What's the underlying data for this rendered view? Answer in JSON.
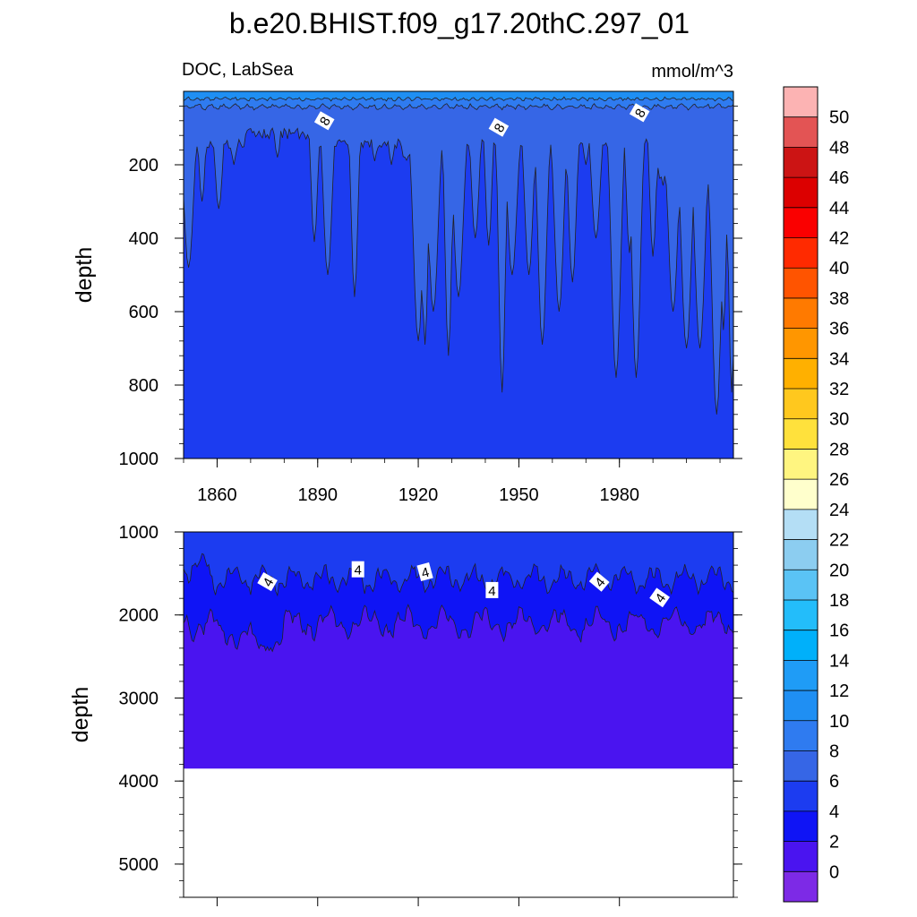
{
  "chart_data": [
    {
      "type": "heatmap",
      "title": "b.e20.BHIST.f09_g17.20thC.297_01",
      "left_subtitle": "DOC, LabSea",
      "right_subtitle": "mmol/m^3",
      "xlabel": "",
      "ylabel": "depth",
      "xlim": [
        1850,
        2014
      ],
      "ylim": [
        1000,
        0
      ],
      "x_ticks": [
        "1860",
        "1890",
        "1920",
        "1950",
        "1980"
      ],
      "y_ticks": [
        "200",
        "400",
        "600",
        "800",
        "1000"
      ],
      "contour_labels": [
        "8",
        "8",
        "8"
      ],
      "bands": [
        {
          "level": "10-12",
          "color": "#1f8ff3"
        },
        {
          "level": "8-10",
          "color": "#2f7bf0"
        },
        {
          "level": "6-8",
          "color": "#3666e6"
        },
        {
          "level": "4-6",
          "color": "#1c3cf0"
        }
      ]
    },
    {
      "type": "heatmap",
      "xlim": [
        1850,
        2014
      ],
      "ylim": [
        5400,
        1000
      ],
      "ylabel": "depth",
      "y_ticks": [
        "1000",
        "2000",
        "3000",
        "4000",
        "5000"
      ],
      "ocean_bottom": 3850,
      "contour_labels": [
        "4",
        "4",
        "4",
        "4",
        "4",
        "4"
      ],
      "bands": [
        {
          "level": "4-6",
          "color": "#1c3cf0"
        },
        {
          "level": "2-4",
          "color": "#0f14f5"
        },
        {
          "level": "0-2",
          "color": "#4a14f0"
        }
      ]
    }
  ],
  "colorbar": {
    "labels": [
      "50",
      "48",
      "46",
      "44",
      "42",
      "40",
      "38",
      "36",
      "34",
      "32",
      "30",
      "28",
      "26",
      "24",
      "22",
      "20",
      "18",
      "16",
      "14",
      "12",
      "10",
      "8",
      "6",
      "4",
      "2",
      "0"
    ],
    "colors": [
      "#fcb3b3",
      "#e35454",
      "#cc1414",
      "#dc0000",
      "#fa0000",
      "#ff2a00",
      "#ff5400",
      "#ff7a00",
      "#ff9600",
      "#ffb000",
      "#ffc81e",
      "#ffe13c",
      "#fff580",
      "#ffffcc",
      "#b4def5",
      "#8ccdf0",
      "#5ac3f5",
      "#23bdfa",
      "#00b0fa",
      "#1f9cf6",
      "#1f8ff3",
      "#2f7bf0",
      "#3666e6",
      "#1c3cf0",
      "#0f14f5",
      "#4a14f0",
      "#7d2ae6"
    ]
  }
}
